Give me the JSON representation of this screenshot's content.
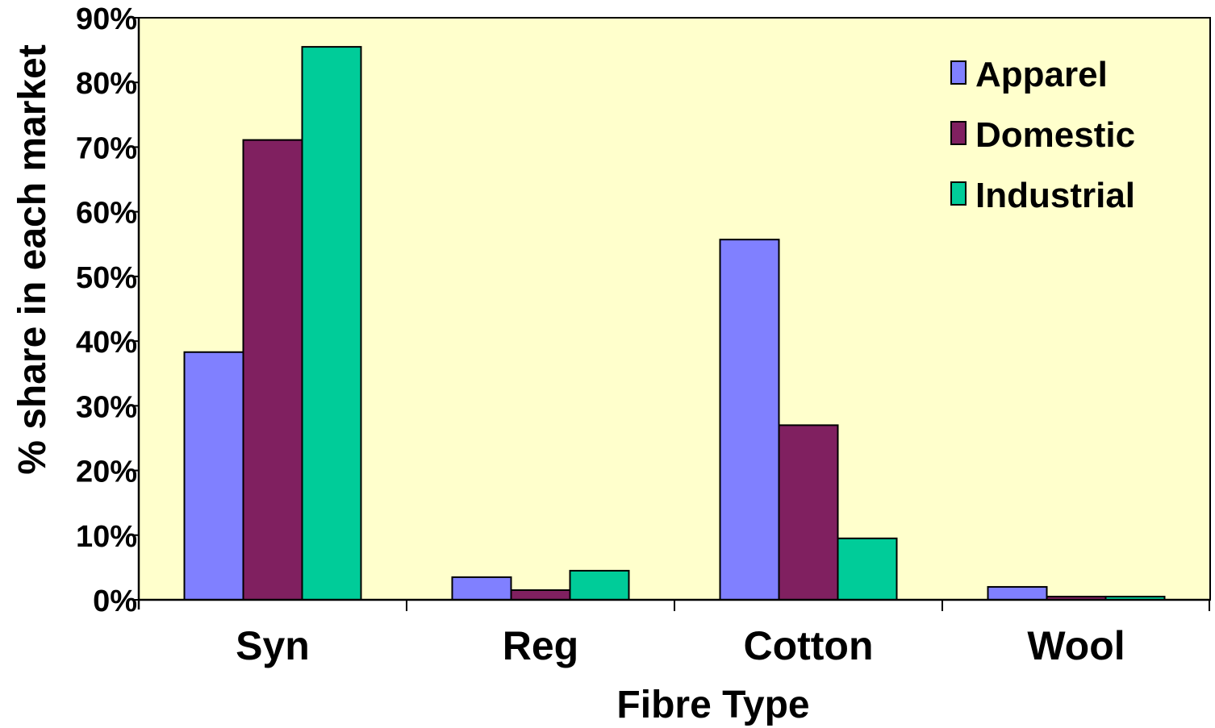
{
  "chart_data": {
    "type": "bar",
    "title": "",
    "xlabel": "Fibre Type",
    "ylabel": "% share in each market",
    "categories": [
      "Syn",
      "Reg",
      "Cotton",
      "Wool"
    ],
    "ylim": [
      0,
      90
    ],
    "y_ticks": [
      0,
      10,
      20,
      30,
      40,
      50,
      60,
      70,
      80,
      90
    ],
    "y_tick_labels": [
      "0%",
      "10%",
      "20%",
      "30%",
      "40%",
      "50%",
      "60%",
      "70%",
      "80%",
      "90%"
    ],
    "legend_position": "top-right",
    "grid": false,
    "plot_background": "#ffffcc",
    "series": [
      {
        "name": "Apparel",
        "color": "#8080ff",
        "values": [
          38.3,
          3.5,
          55.7,
          2.0
        ]
      },
      {
        "name": "Domestic",
        "color": "#802060",
        "values": [
          71.1,
          1.5,
          27.0,
          0.5
        ]
      },
      {
        "name": "Industrial",
        "color": "#00cc99",
        "values": [
          85.5,
          4.5,
          9.5,
          0.5
        ]
      }
    ]
  }
}
